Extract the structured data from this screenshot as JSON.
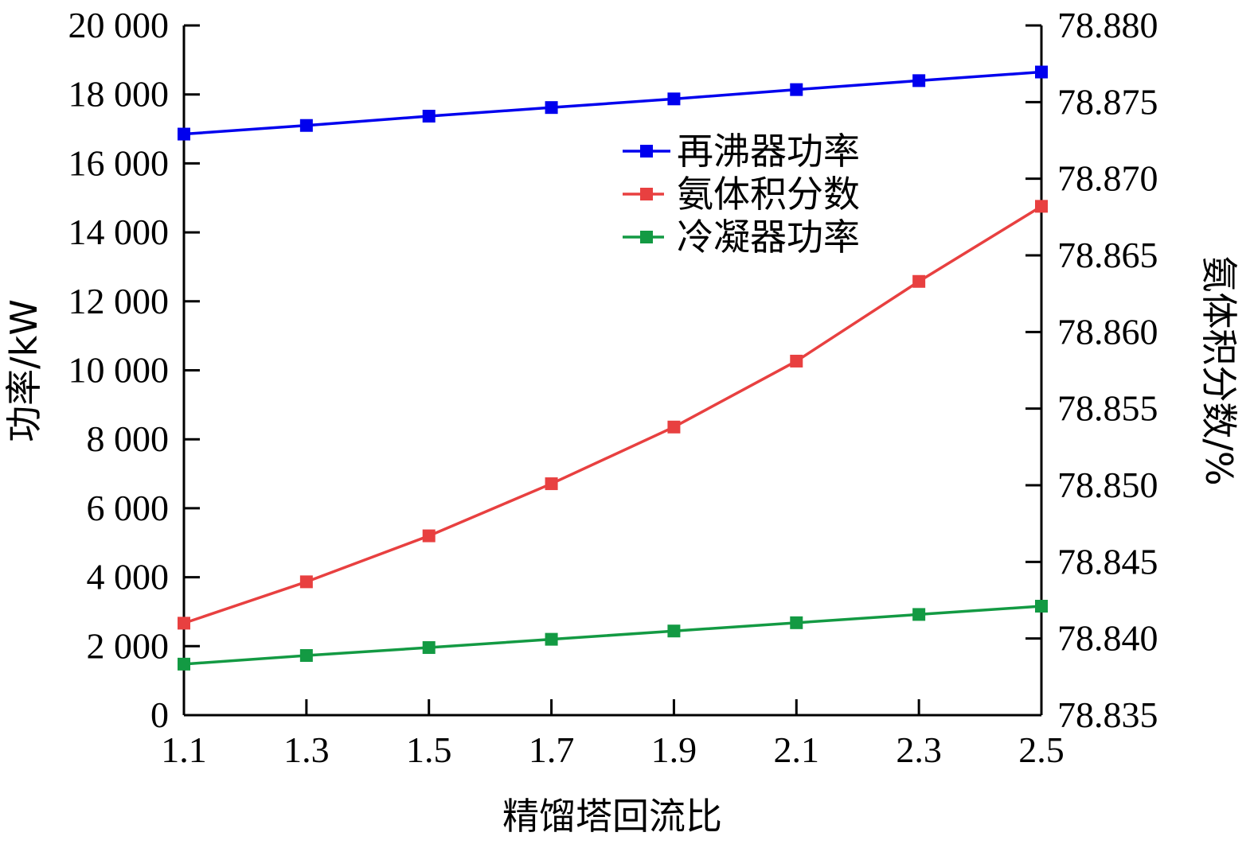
{
  "chart_data": {
    "type": "line",
    "xlabel": "精馏塔回流比",
    "ylabel": "功率/kW",
    "y2label": "氨体积分数/%",
    "x": [
      1.1,
      1.3,
      1.5,
      1.7,
      1.9,
      2.1,
      2.3,
      2.5
    ],
    "x_ticks": [
      "1.1",
      "1.3",
      "1.5",
      "1.7",
      "1.9",
      "2.1",
      "2.3",
      "2.5"
    ],
    "xlim": [
      1.1,
      2.5
    ],
    "ylim": [
      0,
      20000
    ],
    "y_ticks": [
      0,
      2000,
      4000,
      6000,
      8000,
      10000,
      12000,
      14000,
      16000,
      18000,
      20000
    ],
    "y_tick_labels": [
      "0",
      "2 000",
      "4 000",
      "6 000",
      "8 000",
      "10 000",
      "12 000",
      "14 000",
      "16 000",
      "18 000",
      "20 000"
    ],
    "y2lim": [
      78.835,
      78.88
    ],
    "y2_ticks": [
      78.835,
      78.84,
      78.845,
      78.85,
      78.855,
      78.86,
      78.865,
      78.87,
      78.875,
      78.88
    ],
    "y2_tick_labels": [
      "78.835",
      "78.840",
      "78.845",
      "78.850",
      "78.855",
      "78.860",
      "78.865",
      "78.870",
      "78.875",
      "78.880"
    ],
    "grid": false,
    "legend_position": "top-right",
    "series": [
      {
        "name": "再沸器功率",
        "axis": "left",
        "color": "#0000ee",
        "values": [
          16850,
          17100,
          17370,
          17620,
          17870,
          18140,
          18400,
          18650
        ]
      },
      {
        "name": "氨体积分数",
        "axis": "right",
        "color": "#e84040",
        "values": [
          78.841,
          78.8437,
          78.8467,
          78.8501,
          78.8538,
          78.8581,
          78.8633,
          78.8682
        ]
      },
      {
        "name": "冷凝器功率",
        "axis": "left",
        "color": "#139a43",
        "values": [
          1480,
          1730,
          1960,
          2200,
          2440,
          2680,
          2920,
          3160
        ]
      }
    ]
  }
}
